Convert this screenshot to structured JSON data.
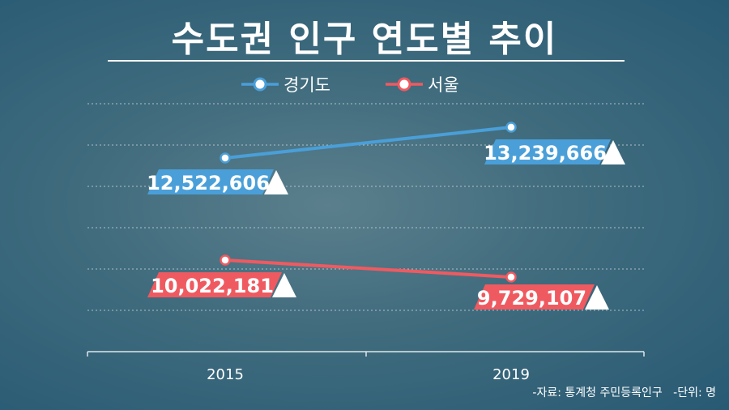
{
  "chart_data": {
    "type": "line",
    "title": "수도권 인구 연도별 추이",
    "categories": [
      "2015",
      "2019"
    ],
    "series": [
      {
        "name": "경기도",
        "color": "#4a9fd8",
        "values": [
          12522606,
          13239666
        ],
        "labels": [
          "12,522,606",
          "13,239,666"
        ]
      },
      {
        "name": "서울",
        "color": "#ef5a60",
        "values": [
          10022181,
          9729107
        ],
        "labels": [
          "10,022,181",
          "9,729,107"
        ]
      }
    ],
    "xlabel": "",
    "ylabel": "",
    "grid": true,
    "legend_position": "top-center"
  },
  "footer": {
    "source": "-자료: 통계청 주민등록인구",
    "unit": "-단위: 명"
  }
}
